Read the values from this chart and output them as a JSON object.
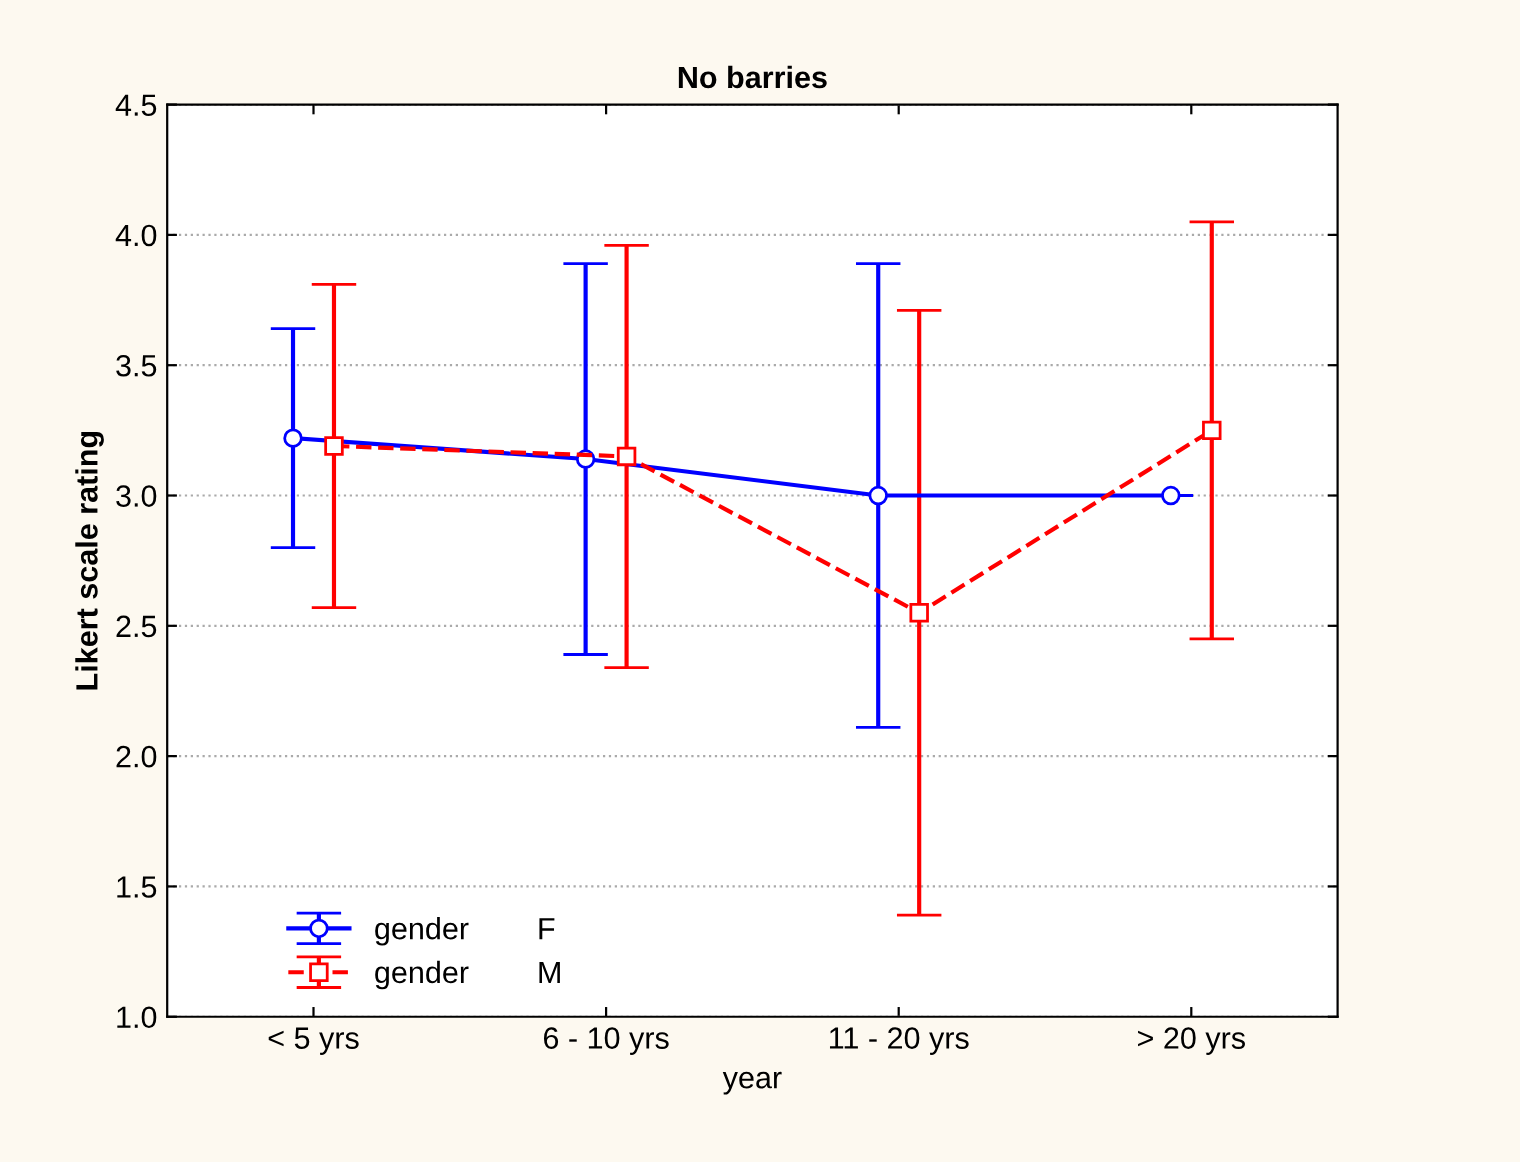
{
  "chart_data": {
    "type": "line",
    "title": "No barries",
    "xlabel": "year",
    "ylabel": "Likert scale rating",
    "categories": [
      "< 5 yrs",
      "6 - 10 yrs",
      "11 - 20 yrs",
      "> 20 yrs"
    ],
    "series": [
      {
        "name": "gender        F",
        "color": "#0000ff",
        "values": [
          3.22,
          3.14,
          3.0,
          3.0
        ],
        "errors": [
          0.42,
          0.75,
          0.89,
          null
        ],
        "marker": "circle",
        "line_style": "solid"
      },
      {
        "name": "gender        M",
        "color": "#ff0000",
        "values": [
          3.19,
          3.15,
          2.55,
          3.25
        ],
        "errors": [
          0.62,
          0.81,
          1.16,
          0.8
        ],
        "marker": "square",
        "line_style": "dashed"
      }
    ],
    "ylim": [
      1.0,
      4.5
    ],
    "yticks": [
      {
        "value": 1.0,
        "label": "1.0"
      },
      {
        "value": 1.5,
        "label": "1.5"
      },
      {
        "value": 2.0,
        "label": "2.0"
      },
      {
        "value": 2.5,
        "label": "2.5"
      },
      {
        "value": 3.0,
        "label": "3.0"
      },
      {
        "value": 3.5,
        "label": "3.5"
      },
      {
        "value": 4.0,
        "label": "4.0"
      },
      {
        "value": 4.5,
        "label": "4.5"
      }
    ],
    "grid": "y",
    "legend": "bottom left"
  }
}
